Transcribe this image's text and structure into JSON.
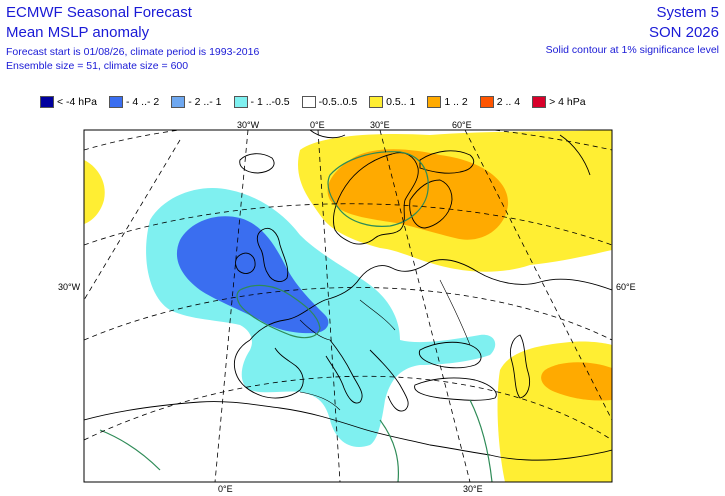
{
  "header": {
    "title": "ECMWF Seasonal Forecast",
    "subtitle": "Mean MSLP anomaly",
    "forecast_info": "Forecast start is 01/08/26, climate period is 1993-2016",
    "ensemble_info": "Ensemble size = 51, climate size = 600",
    "system": "System 5",
    "season": "SON 2026",
    "note": "Solid contour at 1% significance level"
  },
  "legend": [
    {
      "label": "< -4 hPa",
      "color": "#00009e"
    },
    {
      "label": "- 4 ..- 2",
      "color": "#3a6ef0"
    },
    {
      "label": "- 2 ..- 1",
      "color": "#6fa8f0"
    },
    {
      "label": "- 1 ..-0.5",
      "color": "#7ff0f0"
    },
    {
      "label": "-0.5..0.5",
      "color": "#ffffff"
    },
    {
      "label": "0.5.. 1",
      "color": "#ffee33"
    },
    {
      "label": "1 .. 2",
      "color": "#ffaa00"
    },
    {
      "label": "2 .. 4",
      "color": "#ff5500"
    },
    {
      "label": "> 4 hPa",
      "color": "#d8002a"
    }
  ],
  "map": {
    "grid_labels": {
      "top_30w": "30°W",
      "top_0e": "0°E",
      "top_30e": "30°E",
      "top_60e": "60°E",
      "left_30w": "30°W",
      "right_60e": "60°E",
      "bottom_0e": "0°E",
      "bottom_30e": "30°E"
    }
  }
}
